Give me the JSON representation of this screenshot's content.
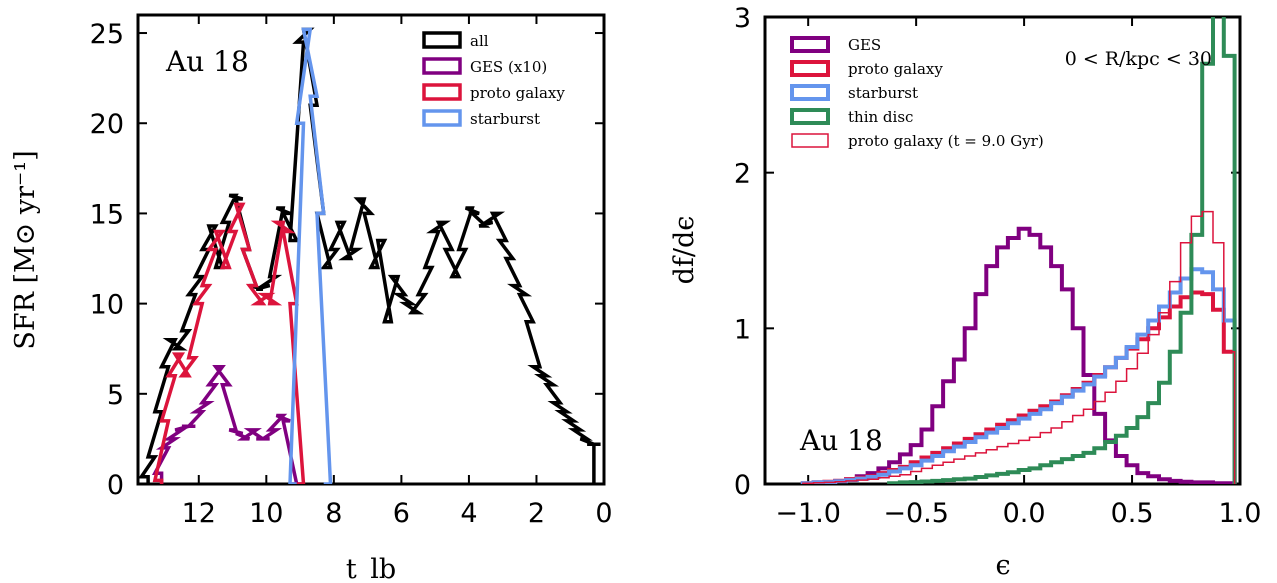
{
  "chart_data": [
    {
      "type": "line",
      "drawstyle": "steps",
      "annotation": "Au 18",
      "xlabel": "t_lb",
      "ylabel": "SFR [M⊙ yr⁻¹]",
      "xlim": [
        13.8,
        0
      ],
      "ylim": [
        0,
        26
      ],
      "xticks": [
        12,
        10,
        8,
        6,
        4,
        2,
        0
      ],
      "yticks": [
        0,
        5,
        10,
        15,
        20,
        25
      ],
      "grid": false,
      "legend_position": "top-right",
      "series": [
        {
          "name": "all",
          "color": "#000000",
          "x": [
            13.6,
            13.4,
            13.2,
            13.0,
            12.8,
            12.6,
            12.4,
            12.2,
            12.0,
            11.8,
            11.6,
            11.4,
            11.2,
            11.0,
            10.8,
            10.6,
            10.4,
            10.2,
            10.0,
            9.8,
            9.6,
            9.4,
            9.2,
            9.0,
            8.8,
            8.6,
            8.4,
            8.2,
            8.0,
            7.8,
            7.6,
            7.4,
            7.2,
            7.0,
            6.8,
            6.6,
            6.4,
            6.2,
            6.0,
            5.8,
            5.6,
            5.4,
            5.2,
            5.0,
            4.8,
            4.6,
            4.4,
            4.2,
            4.0,
            3.8,
            3.6,
            3.4,
            3.2,
            3.0,
            2.8,
            2.6,
            2.4,
            2.2,
            2.0,
            1.8,
            1.6,
            1.4,
            1.2,
            1.0,
            0.8,
            0.6,
            0.4,
            0.2
          ],
          "y": [
            0.4,
            1.5,
            4.0,
            6.5,
            8.0,
            7.5,
            8.5,
            10.5,
            11.5,
            13.0,
            14.3,
            12.0,
            14.5,
            16.0,
            15.8,
            13.0,
            11.0,
            10.8,
            11.0,
            11.5,
            15.3,
            15.0,
            13.5,
            24.5,
            25.2,
            21.0,
            15.0,
            12.0,
            13.0,
            14.5,
            12.5,
            13.0,
            15.8,
            15.0,
            12.0,
            13.5,
            9.0,
            11.5,
            10.5,
            10.0,
            9.5,
            10.5,
            12.0,
            14.0,
            14.5,
            13.0,
            11.5,
            13.0,
            15.3,
            15.0,
            14.3,
            14.5,
            15.0,
            13.5,
            12.5,
            11.0,
            10.5,
            9.0,
            6.5,
            6.0,
            5.5,
            4.5,
            4.0,
            3.5,
            3.0,
            2.5,
            2.2,
            2.2
          ]
        },
        {
          "name": "GES (x10)",
          "color": "#800080",
          "x": [
            13.2,
            13.0,
            12.8,
            12.6,
            12.4,
            12.2,
            12.0,
            11.8,
            11.6,
            11.4,
            11.2,
            11.0,
            10.8,
            10.6,
            10.4,
            10.2,
            10.0,
            9.8,
            9.6,
            9.4,
            9.2,
            9.0
          ],
          "y": [
            0.6,
            2.0,
            2.5,
            3.0,
            3.2,
            3.2,
            4.0,
            4.5,
            5.5,
            6.5,
            5.5,
            3.0,
            2.8,
            2.5,
            3.0,
            2.5,
            2.5,
            3.0,
            3.8,
            3.5,
            0.0,
            0.0
          ]
        },
        {
          "name": "proto galaxy",
          "color": "#DC143C",
          "x": [
            13.2,
            13.0,
            12.8,
            12.6,
            12.4,
            12.2,
            12.0,
            11.8,
            11.6,
            11.4,
            11.2,
            11.0,
            10.8,
            10.6,
            10.4,
            10.2,
            10.0,
            9.8,
            9.6,
            9.4,
            9.2,
            9.0
          ],
          "y": [
            0.2,
            3.5,
            6.0,
            7.2,
            6.0,
            7.0,
            10.0,
            11.0,
            13.0,
            14.0,
            12.0,
            14.0,
            15.5,
            13.0,
            11.0,
            10.0,
            10.5,
            10.0,
            14.5,
            14.0,
            10.0,
            0.0
          ]
        },
        {
          "name": "starburst",
          "color": "#6495ED",
          "x": [
            9.2,
            9.0,
            8.8,
            8.6,
            8.4,
            8.2
          ],
          "y": [
            0.0,
            20.0,
            25.2,
            21.5,
            15.0,
            0.0
          ]
        }
      ]
    },
    {
      "type": "line",
      "drawstyle": "steps",
      "annotation": "Au 18",
      "region_label": "0 < R/kpc < 30",
      "xlabel": "ϵ",
      "ylabel": "df/dϵ",
      "xlim": [
        -1.2,
        1.0
      ],
      "ylim": [
        0,
        3
      ],
      "xticks": [
        -1.0,
        -0.5,
        0.0,
        0.5,
        1.0
      ],
      "yticks": [
        0,
        1,
        2,
        3
      ],
      "grid": false,
      "legend_position": "top-left",
      "series": [
        {
          "name": "GES",
          "color": "#800080",
          "width": 4,
          "x": [
            -1.0,
            -0.95,
            -0.9,
            -0.85,
            -0.8,
            -0.75,
            -0.7,
            -0.65,
            -0.6,
            -0.55,
            -0.5,
            -0.45,
            -0.4,
            -0.35,
            -0.3,
            -0.25,
            -0.2,
            -0.15,
            -0.1,
            -0.05,
            0.0,
            0.05,
            0.1,
            0.15,
            0.2,
            0.25,
            0.3,
            0.35,
            0.4,
            0.45,
            0.5,
            0.55,
            0.6,
            0.65,
            0.7,
            0.75,
            0.8,
            0.85,
            0.9,
            0.95
          ],
          "y": [
            0.0,
            0.01,
            0.01,
            0.02,
            0.03,
            0.05,
            0.07,
            0.1,
            0.14,
            0.19,
            0.25,
            0.35,
            0.5,
            0.66,
            0.8,
            1.0,
            1.22,
            1.4,
            1.52,
            1.58,
            1.64,
            1.6,
            1.52,
            1.4,
            1.25,
            1.0,
            0.7,
            0.45,
            0.28,
            0.18,
            0.12,
            0.07,
            0.05,
            0.03,
            0.02,
            0.015,
            0.01,
            0.01,
            0.005,
            0.005
          ]
        },
        {
          "name": "proto galaxy",
          "color": "#DC143C",
          "width": 4,
          "x": [
            -1.0,
            -0.95,
            -0.9,
            -0.85,
            -0.8,
            -0.75,
            -0.7,
            -0.65,
            -0.6,
            -0.55,
            -0.5,
            -0.45,
            -0.4,
            -0.35,
            -0.3,
            -0.25,
            -0.2,
            -0.15,
            -0.1,
            -0.05,
            0.0,
            0.05,
            0.1,
            0.15,
            0.2,
            0.25,
            0.3,
            0.35,
            0.4,
            0.45,
            0.5,
            0.55,
            0.6,
            0.65,
            0.7,
            0.75,
            0.8,
            0.85,
            0.9,
            0.95
          ],
          "y": [
            0.005,
            0.01,
            0.015,
            0.02,
            0.03,
            0.04,
            0.05,
            0.07,
            0.09,
            0.11,
            0.14,
            0.17,
            0.2,
            0.23,
            0.26,
            0.29,
            0.32,
            0.35,
            0.38,
            0.41,
            0.44,
            0.47,
            0.5,
            0.53,
            0.57,
            0.61,
            0.65,
            0.7,
            0.75,
            0.81,
            0.87,
            0.93,
            1.0,
            1.07,
            1.14,
            1.2,
            1.23,
            1.22,
            1.12,
            0.85
          ]
        },
        {
          "name": "starburst",
          "color": "#6495ED",
          "width": 4,
          "x": [
            -1.0,
            -0.95,
            -0.9,
            -0.85,
            -0.8,
            -0.75,
            -0.7,
            -0.65,
            -0.6,
            -0.55,
            -0.5,
            -0.45,
            -0.4,
            -0.35,
            -0.3,
            -0.25,
            -0.2,
            -0.15,
            -0.1,
            -0.05,
            0.0,
            0.05,
            0.1,
            0.15,
            0.2,
            0.25,
            0.3,
            0.35,
            0.4,
            0.45,
            0.5,
            0.55,
            0.6,
            0.65,
            0.7,
            0.75,
            0.8,
            0.85,
            0.9,
            0.95
          ],
          "y": [
            0.005,
            0.01,
            0.012,
            0.018,
            0.025,
            0.035,
            0.045,
            0.06,
            0.08,
            0.1,
            0.12,
            0.15,
            0.18,
            0.21,
            0.24,
            0.27,
            0.3,
            0.33,
            0.36,
            0.39,
            0.42,
            0.45,
            0.48,
            0.52,
            0.56,
            0.6,
            0.64,
            0.69,
            0.75,
            0.81,
            0.88,
            0.96,
            1.05,
            1.14,
            1.23,
            1.32,
            1.38,
            1.36,
            1.25,
            1.05
          ]
        },
        {
          "name": "thin disc",
          "color": "#2E8B57",
          "width": 4,
          "x": [
            -0.6,
            -0.55,
            -0.5,
            -0.45,
            -0.4,
            -0.35,
            -0.3,
            -0.25,
            -0.2,
            -0.15,
            -0.1,
            -0.05,
            0.0,
            0.05,
            0.1,
            0.15,
            0.2,
            0.25,
            0.3,
            0.35,
            0.4,
            0.45,
            0.5,
            0.55,
            0.6,
            0.65,
            0.7,
            0.75,
            0.8,
            0.85,
            0.9,
            0.95
          ],
          "y": [
            0.005,
            0.01,
            0.012,
            0.016,
            0.02,
            0.025,
            0.03,
            0.035,
            0.045,
            0.055,
            0.065,
            0.075,
            0.09,
            0.1,
            0.12,
            0.14,
            0.16,
            0.18,
            0.2,
            0.23,
            0.27,
            0.31,
            0.36,
            0.43,
            0.52,
            0.65,
            0.85,
            1.1,
            1.6,
            2.7,
            3.2,
            2.75
          ]
        },
        {
          "name": "proto galaxy (t = 9.0 Gyr)",
          "color": "#DC143C",
          "width": 1.5,
          "x": [
            -1.0,
            -0.95,
            -0.9,
            -0.85,
            -0.8,
            -0.75,
            -0.7,
            -0.65,
            -0.6,
            -0.55,
            -0.5,
            -0.45,
            -0.4,
            -0.35,
            -0.3,
            -0.25,
            -0.2,
            -0.15,
            -0.1,
            -0.05,
            0.0,
            0.05,
            0.1,
            0.15,
            0.2,
            0.25,
            0.3,
            0.35,
            0.4,
            0.45,
            0.5,
            0.55,
            0.6,
            0.65,
            0.7,
            0.75,
            0.8,
            0.85,
            0.9,
            0.95
          ],
          "y": [
            0.005,
            0.008,
            0.01,
            0.015,
            0.02,
            0.025,
            0.03,
            0.04,
            0.05,
            0.06,
            0.08,
            0.1,
            0.12,
            0.14,
            0.16,
            0.18,
            0.2,
            0.22,
            0.24,
            0.26,
            0.28,
            0.3,
            0.33,
            0.36,
            0.4,
            0.44,
            0.48,
            0.53,
            0.59,
            0.66,
            0.74,
            0.84,
            0.96,
            1.1,
            1.3,
            1.55,
            1.72,
            1.75,
            1.55,
            0.85
          ]
        }
      ]
    }
  ]
}
